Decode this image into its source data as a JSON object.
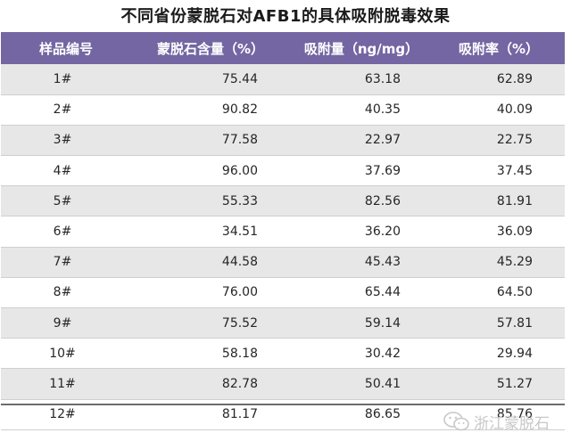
{
  "title": "不同省份蒙脱石对AFB1的具体吸附脱毒效果",
  "headers": [
    "样品编号",
    "蒙脱石含量（%）",
    "吸附量（ng/mg）",
    "吸附率（%）"
  ],
  "rows": [
    [
      "1#",
      "75.44",
      "63.18",
      "62.89"
    ],
    [
      "2#",
      "90.82",
      "40.35",
      "40.09"
    ],
    [
      "3#",
      "77.58",
      "22.97",
      "22.75"
    ],
    [
      "4#",
      "96.00",
      "37.69",
      "37.45"
    ],
    [
      "5#",
      "55.33",
      "82.56",
      "81.91"
    ],
    [
      "6#",
      "34.51",
      "36.20",
      "36.09"
    ],
    [
      "7#",
      "44.58",
      "45.43",
      "45.29"
    ],
    [
      "8#",
      "76.00",
      "65.44",
      "64.50"
    ],
    [
      "9#",
      "75.52",
      "59.14",
      "57.81"
    ],
    [
      "10#",
      "58.18",
      "30.42",
      "29.94"
    ],
    [
      "11#",
      "82.78",
      "50.41",
      "51.27"
    ],
    [
      "12#",
      "81.17",
      "86.65",
      "85.76"
    ]
  ],
  "watermark": {
    "text": "浙江蒙脱石",
    "icon": "wechat-logo-icon"
  },
  "colors": {
    "header_bg": "#7466a2",
    "stripe": "#e7e7e7",
    "watermark": "#c8c8c8"
  }
}
